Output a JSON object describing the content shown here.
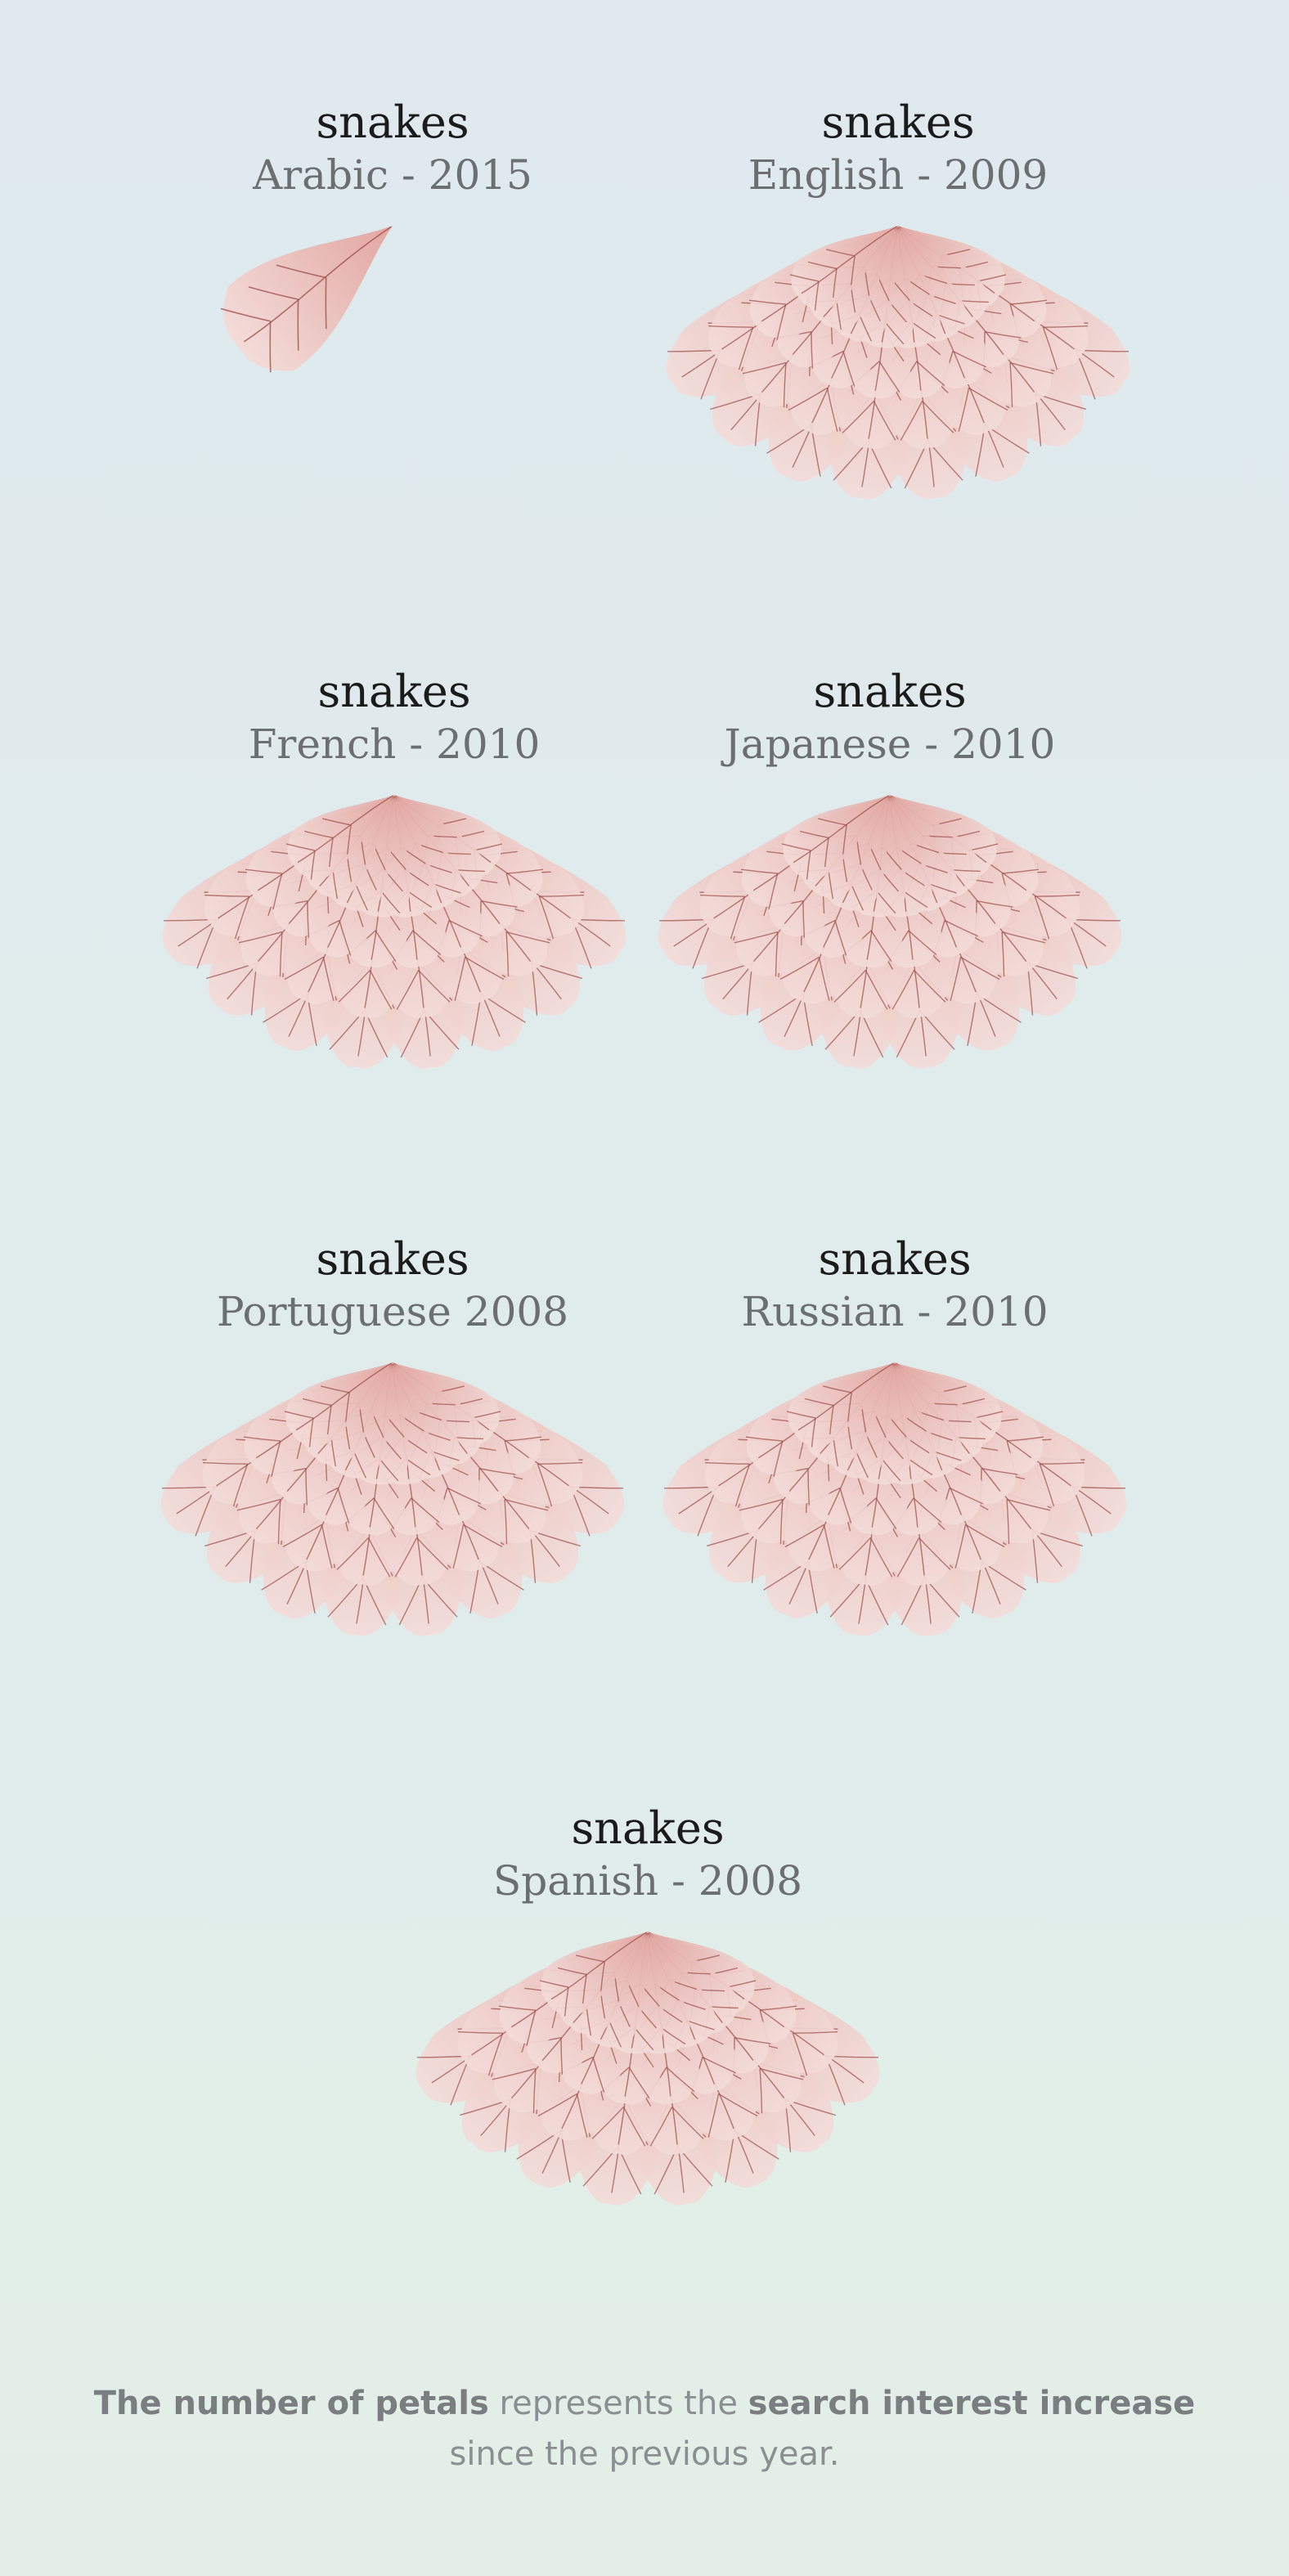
{
  "flowers": [
    {
      "term": "snakes",
      "subtitle": "Arabic - 2015",
      "petals": 1
    },
    {
      "term": "snakes",
      "subtitle": "English - 2009",
      "petals": 32
    },
    {
      "term": "snakes",
      "subtitle": "French - 2010",
      "petals": 32
    },
    {
      "term": "snakes",
      "subtitle": "Japanese - 2010",
      "petals": 32
    },
    {
      "term": "snakes",
      "subtitle": "Portuguese  2008",
      "petals": 32
    },
    {
      "term": "snakes",
      "subtitle": "Russian - 2010",
      "petals": 32
    },
    {
      "term": "snakes",
      "subtitle": "Spanish - 2008",
      "petals": 32
    }
  ],
  "caption": {
    "bold1": "The number of petals",
    "text1": " represents the ",
    "bold2": "search interest increase",
    "text2": "since the previous year."
  },
  "colors": {
    "petal_outer": "#f3dcd9",
    "petal_inner": "#e2a7a2",
    "vein": "#9b4a47"
  }
}
